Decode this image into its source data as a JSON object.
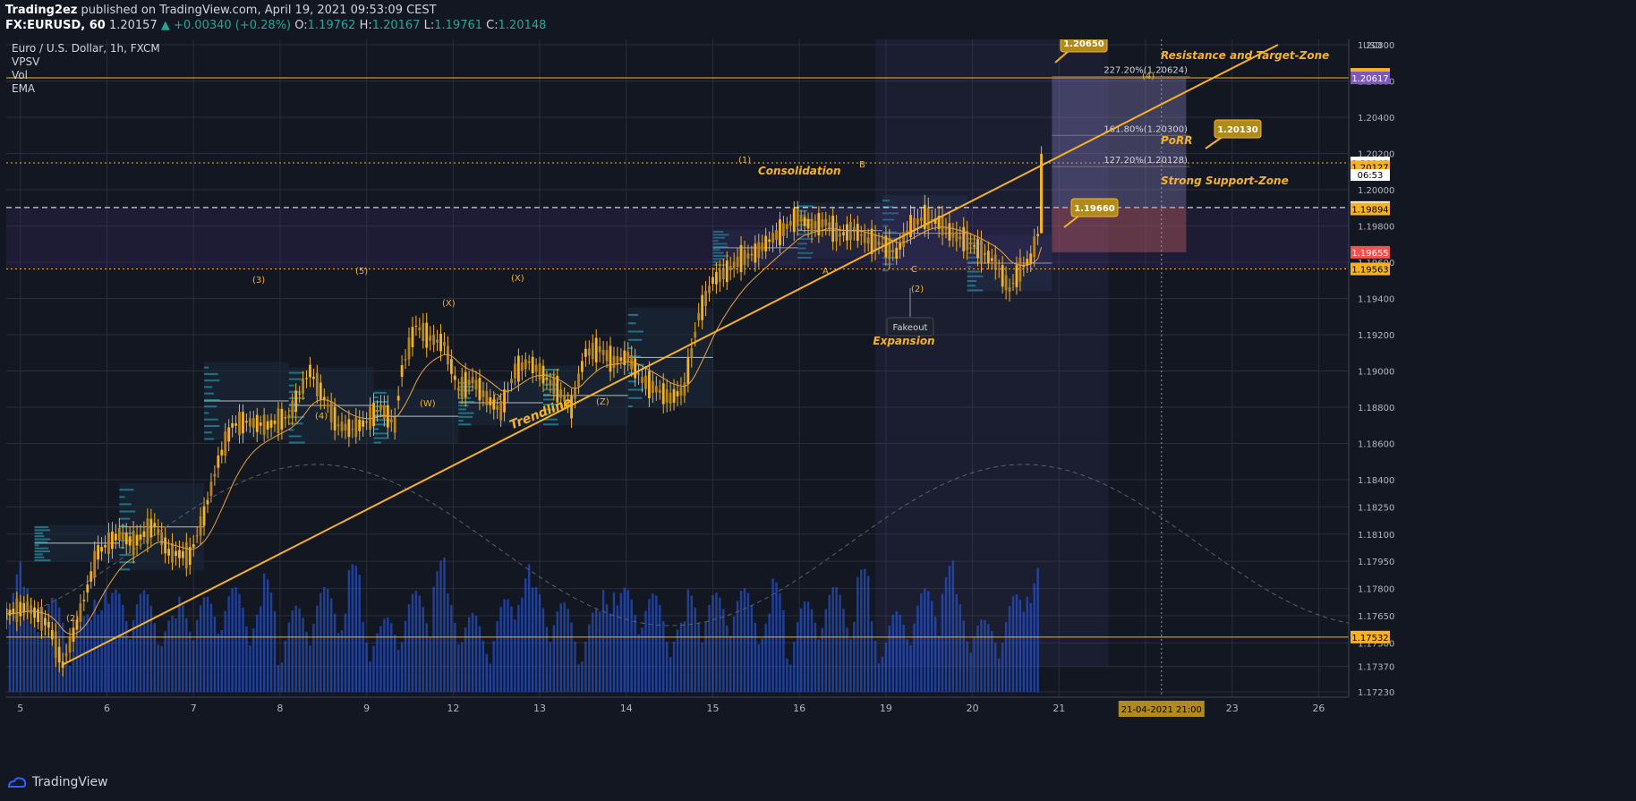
{
  "header": {
    "publisher": "Trading2ez",
    "published_text": "published on TradingView.com, April 19, 2021 09:53:09 CEST",
    "symbol": "FX:EURUSD, 60",
    "last": "1.20157",
    "change": "▲ +0.00340 (+0.28%)",
    "o_label": "O:",
    "o_val": "1.19762",
    "h_label": "H:",
    "h_val": "1.20167",
    "l_label": "L:",
    "l_val": "1.19761",
    "c_label": "C:",
    "c_val": "1.20148"
  },
  "legend": {
    "title": "Euro / U.S. Dollar, 1h, FXCM",
    "indicators": [
      "VPSV",
      "Vol",
      "EMA"
    ]
  },
  "footer": {
    "brand": "TradingView"
  },
  "colors": {
    "background": "#131722",
    "gold": "#f5b324",
    "volume": "#2962ff",
    "grid": "#2a2e39",
    "label_purple": "#7e57c2",
    "label_red": "#ef5350"
  },
  "chart_data": {
    "type": "candlestick",
    "symbol": "EURUSD",
    "timeframe": "1h",
    "ylim": [
      1.1723,
      1.208
    ],
    "y_ticks": [
      "1.20800",
      "1.20600",
      "1.20400",
      "1.20200",
      "1.20000",
      "1.19800",
      "1.19600",
      "1.19400",
      "1.19200",
      "1.19000",
      "1.18800",
      "1.18600",
      "1.18400",
      "1.18250",
      "1.18100",
      "1.17950",
      "1.17800",
      "1.17650",
      "1.17500",
      "1.17370",
      "1.17230"
    ],
    "y_unit": "USD",
    "x_ticks": [
      "5",
      "6",
      "7",
      "8",
      "9",
      "12",
      "13",
      "14",
      "15",
      "16",
      "19",
      "20",
      "21",
      "22",
      "23",
      "26"
    ],
    "x_cursor_label": "21-04-2021  21:00",
    "price_path": [
      [
        0,
        1.1766
      ],
      [
        6,
        1.177
      ],
      [
        12,
        1.176
      ],
      [
        16,
        1.1738
      ],
      [
        20,
        1.176
      ],
      [
        26,
        1.18
      ],
      [
        32,
        1.181
      ],
      [
        36,
        1.1805
      ],
      [
        42,
        1.1815
      ],
      [
        46,
        1.18
      ],
      [
        52,
        1.1798
      ],
      [
        56,
        1.182
      ],
      [
        60,
        1.185
      ],
      [
        64,
        1.187
      ],
      [
        68,
        1.1872
      ],
      [
        74,
        1.187
      ],
      [
        80,
        1.1875
      ],
      [
        86,
        1.19
      ],
      [
        90,
        1.1885
      ],
      [
        94,
        1.187
      ],
      [
        98,
        1.1868
      ],
      [
        102,
        1.1872
      ],
      [
        106,
        1.188
      ],
      [
        110,
        1.187
      ],
      [
        112,
        1.19
      ],
      [
        116,
        1.1925
      ],
      [
        120,
        1.1918
      ],
      [
        124,
        1.1915
      ],
      [
        128,
        1.189
      ],
      [
        132,
        1.1895
      ],
      [
        136,
        1.1885
      ],
      [
        140,
        1.1878
      ],
      [
        144,
        1.19
      ],
      [
        148,
        1.1905
      ],
      [
        152,
        1.1898
      ],
      [
        156,
        1.189
      ],
      [
        160,
        1.188
      ],
      [
        164,
        1.191
      ],
      [
        168,
        1.1912
      ],
      [
        172,
        1.1905
      ],
      [
        176,
        1.1908
      ],
      [
        180,
        1.1895
      ],
      [
        184,
        1.189
      ],
      [
        188,
        1.1885
      ],
      [
        192,
        1.189
      ],
      [
        196,
        1.193
      ],
      [
        200,
        1.195
      ],
      [
        204,
        1.1955
      ],
      [
        208,
        1.1962
      ],
      [
        212,
        1.1965
      ],
      [
        216,
        1.1972
      ],
      [
        220,
        1.1978
      ],
      [
        224,
        1.1985
      ],
      [
        228,
        1.198
      ],
      [
        232,
        1.1982
      ],
      [
        236,
        1.1975
      ],
      [
        240,
        1.1978
      ],
      [
        244,
        1.1972
      ],
      [
        248,
        1.197
      ],
      [
        252,
        1.1965
      ],
      [
        256,
        1.198
      ],
      [
        260,
        1.1985
      ],
      [
        264,
        1.1982
      ],
      [
        268,
        1.1975
      ],
      [
        272,
        1.1972
      ],
      [
        276,
        1.1966
      ],
      [
        280,
        1.196
      ],
      [
        284,
        1.1945
      ],
      [
        287,
        1.1956
      ],
      [
        290,
        1.1962
      ],
      [
        292,
        1.1975
      ],
      [
        293,
        1.2015
      ]
    ],
    "volume_bars_count": 292,
    "ema": "EMA",
    "horizontal_levels": [
      {
        "price": 1.20617,
        "label": "1.20617",
        "style": "solid",
        "color": "#f5b324"
      },
      {
        "price": 1.20148,
        "label": "1.20148",
        "style": "dotted",
        "color": "#f5b324"
      },
      {
        "price": 1.19902,
        "label": "1.19902",
        "style": "dashed",
        "color": "#ffffff"
      },
      {
        "price": 1.19563,
        "label": "1.19563",
        "style": "dotted",
        "color": "#f5b324"
      },
      {
        "price": 1.17532,
        "label": "1.17532",
        "style": "solid",
        "color": "#f5b324"
      }
    ],
    "right_axis_labels": [
      {
        "price": 1.20637,
        "text": "1.20637",
        "bg": "#f5b324",
        "fg": "#000000"
      },
      {
        "price": 1.20617,
        "text": "1.20617",
        "bg": "#7e57c2",
        "fg": "#ffffff"
      },
      {
        "price": 1.20148,
        "text": "1.20148",
        "bg": "#ffffff",
        "fg": "#000000"
      },
      {
        "price": 1.20127,
        "text": "1.20127",
        "bg": "#f5b324",
        "fg": "#000000"
      },
      {
        "price": 1.19902,
        "text": "1.19902",
        "bg": "#ffffff",
        "fg": "#000000"
      },
      {
        "price": 1.19894,
        "text": "1.19894",
        "bg": "#f5b324",
        "fg": "#000000"
      },
      {
        "price": 1.19655,
        "text": "1.19655",
        "bg": "#ef5350",
        "fg": "#ffffff"
      },
      {
        "price": 1.19563,
        "text": "1.19563",
        "bg": "#f5b324",
        "fg": "#000000"
      },
      {
        "price": 1.17532,
        "text": "1.17532",
        "bg": "#f5b324",
        "fg": "#000000"
      }
    ],
    "countdown": "06:53",
    "trendline": {
      "from": [
        16,
        1.1738
      ],
      "to": [
        360,
        1.208
      ],
      "label": "Trendline"
    },
    "zones": [
      {
        "label": "Resistance and Target-Zone"
      },
      {
        "label": "PoRR"
      },
      {
        "label": "Strong Support-Zone"
      }
    ],
    "callouts": [
      "1.20650",
      "1.20130",
      "1.19660"
    ],
    "fib_labels": [
      "227.20%(1.20624)",
      "161.80%(1.20300)",
      "127.20%(1.20128)"
    ],
    "wave_labels": [
      "(2)",
      "(3)",
      "(4)",
      "(5)",
      "(W)",
      "(X)",
      "(Y)",
      "(X)",
      "(Z)",
      "(1)",
      "A",
      "B",
      "C",
      "(2)",
      "(4)"
    ],
    "annotations": [
      "Consolidation",
      "Fakeout",
      "Expansion"
    ],
    "position": {
      "entry": 1.199,
      "stop": 1.19655,
      "target": 1.20617
    }
  }
}
